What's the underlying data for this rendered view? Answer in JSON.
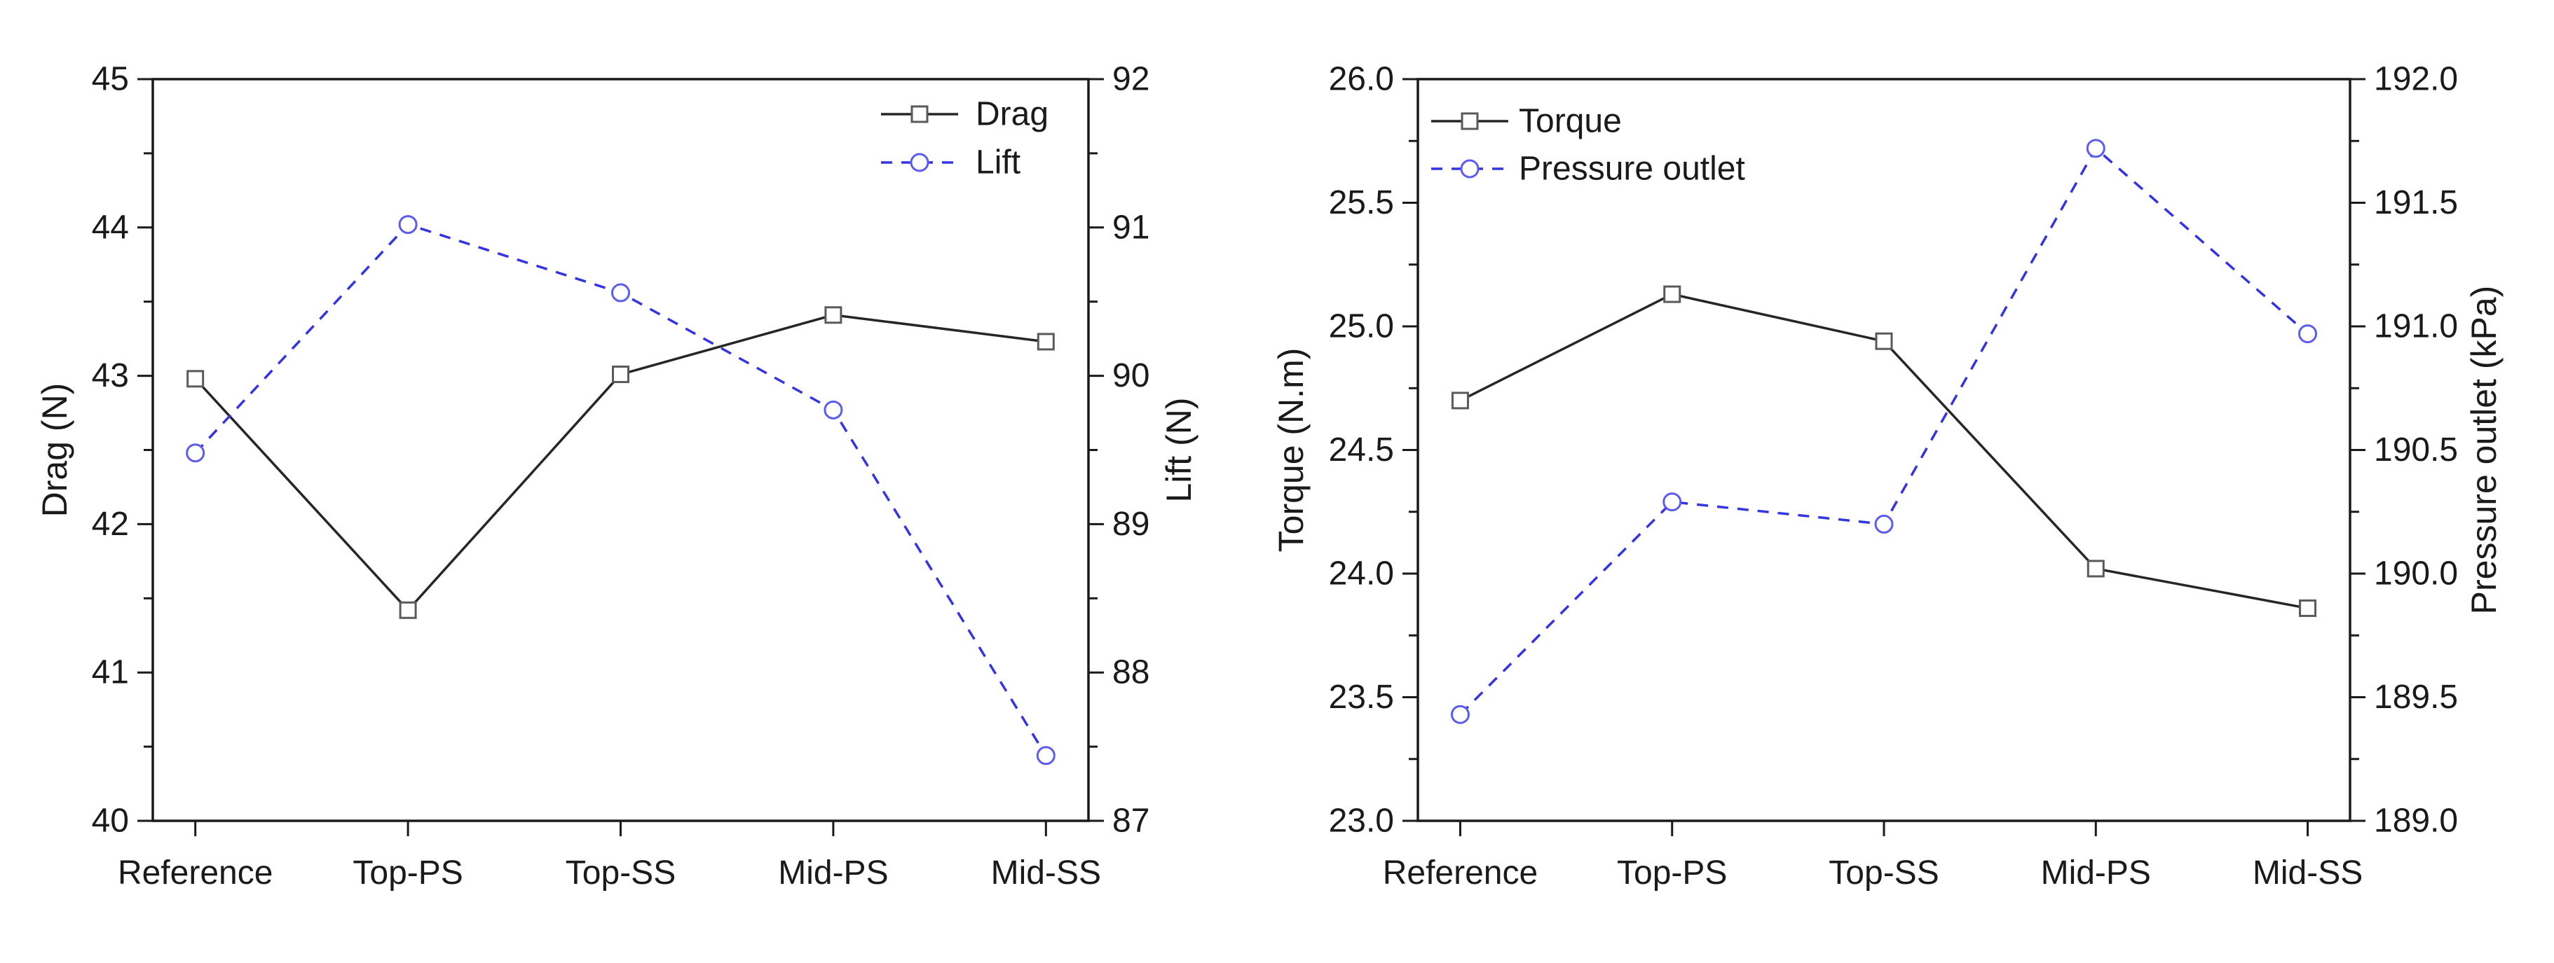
{
  "figure": {
    "background": "#ffffff",
    "text_color": "#1a1a1a",
    "accent_blue": "#3434e0",
    "line_black": "#262626"
  },
  "chart_data": [
    {
      "type": "line",
      "title": "",
      "categories": [
        "Reference",
        "Top-PS",
        "Top-SS",
        "Mid-PS",
        "Mid-SS"
      ],
      "left_axis": {
        "label": "Drag (N)",
        "min": 40,
        "max": 45,
        "major_step": 1,
        "minor_step": 0.5,
        "tick_labels": [
          "40",
          "41",
          "42",
          "43",
          "44",
          "45"
        ]
      },
      "right_axis": {
        "label": "Lift (N)",
        "min": 87,
        "max": 92,
        "major_step": 1,
        "minor_step": 0.5,
        "tick_labels": [
          "87",
          "88",
          "89",
          "90",
          "91",
          "92"
        ]
      },
      "grid": false,
      "legend_position": "top-right",
      "series": [
        {
          "name": "Drag",
          "axis": "left",
          "line": "solid",
          "marker": "square",
          "color": "#262626",
          "marker_color": "#5a5a5a",
          "values": [
            42.98,
            41.42,
            43.01,
            43.41,
            43.23
          ]
        },
        {
          "name": "Lift",
          "axis": "right",
          "line": "dashed",
          "marker": "circle",
          "color": "#3434e0",
          "marker_color": "#5c5cee",
          "values": [
            89.48,
            91.02,
            90.56,
            89.77,
            87.44
          ]
        }
      ]
    },
    {
      "type": "line",
      "title": "",
      "categories": [
        "Reference",
        "Top-PS",
        "Top-SS",
        "Mid-PS",
        "Mid-SS"
      ],
      "left_axis": {
        "label": "Torque (N.m)",
        "min": 23.0,
        "max": 26.0,
        "major_step": 0.5,
        "minor_step": 0.25,
        "tick_labels": [
          "23.0",
          "23.5",
          "24.0",
          "24.5",
          "25.0",
          "25.5",
          "26.0"
        ]
      },
      "right_axis": {
        "label": "Pressure outlet (kPa)",
        "min": 189.0,
        "max": 192.0,
        "major_step": 0.5,
        "minor_step": 0.25,
        "tick_labels": [
          "189.0",
          "189.5",
          "190.0",
          "190.5",
          "191.0",
          "191.5",
          "192.0"
        ]
      },
      "grid": false,
      "legend_position": "top-left",
      "series": [
        {
          "name": "Torque",
          "axis": "left",
          "line": "solid",
          "marker": "square",
          "color": "#262626",
          "marker_color": "#5a5a5a",
          "values": [
            24.7,
            25.13,
            24.94,
            24.02,
            23.86
          ]
        },
        {
          "name": "Pressure outlet",
          "axis": "right",
          "line": "dashed",
          "marker": "circle",
          "color": "#3434e0",
          "marker_color": "#5c5cee",
          "values": [
            189.43,
            190.29,
            190.2,
            191.72,
            190.97
          ]
        }
      ]
    }
  ]
}
